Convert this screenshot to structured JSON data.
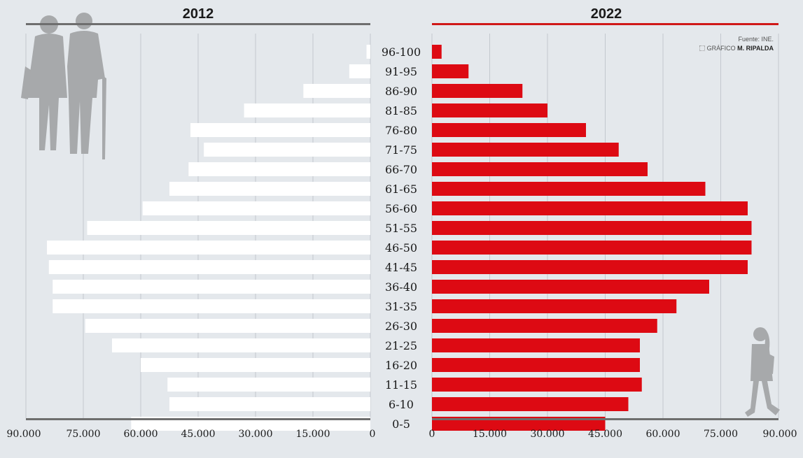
{
  "chart_data": {
    "type": "bar",
    "title": "",
    "categories": [
      "0-5",
      "6-10",
      "11-15",
      "16-20",
      "21-25",
      "26-30",
      "31-35",
      "36-40",
      "41-45",
      "46-50",
      "51-55",
      "56-60",
      "61-65",
      "66-70",
      "71-75",
      "76-80",
      "81-85",
      "86-90",
      "91-95",
      "96-100"
    ],
    "series": [
      {
        "name": "2012",
        "values": [
          62500,
          52500,
          53000,
          60000,
          67500,
          74500,
          83000,
          83000,
          84000,
          84500,
          74000,
          59500,
          52500,
          47500,
          43500,
          47000,
          33000,
          17500,
          5500,
          1000
        ]
      },
      {
        "name": "2022",
        "values": [
          45000,
          51000,
          54500,
          54000,
          54000,
          58500,
          63500,
          72000,
          82000,
          83000,
          83000,
          82000,
          71000,
          56000,
          48500,
          40000,
          30000,
          23500,
          9500,
          2500
        ]
      }
    ],
    "xlim": [
      0,
      90000
    ],
    "xticks": [
      "90.000",
      "75.000",
      "60.000",
      "45.000",
      "30.000",
      "15.000",
      "0"
    ],
    "xticks_right": [
      "0",
      "15.000",
      "30.000",
      "45.000",
      "60.000",
      "75.000",
      "90.000"
    ],
    "grid": true,
    "colors": {
      "2012": "#ffffff",
      "2022": "#dd0a13",
      "header_2012": "#6e6e6e",
      "header_2022": "#d01818",
      "grid": "#c3c8ce"
    }
  },
  "credits": {
    "source": "Fuente: INE.",
    "prefix": "GRÁFICO",
    "author": "M. RIPALDA"
  },
  "icons": {
    "left": "elderly-couple-icon",
    "right": "child-icon"
  }
}
